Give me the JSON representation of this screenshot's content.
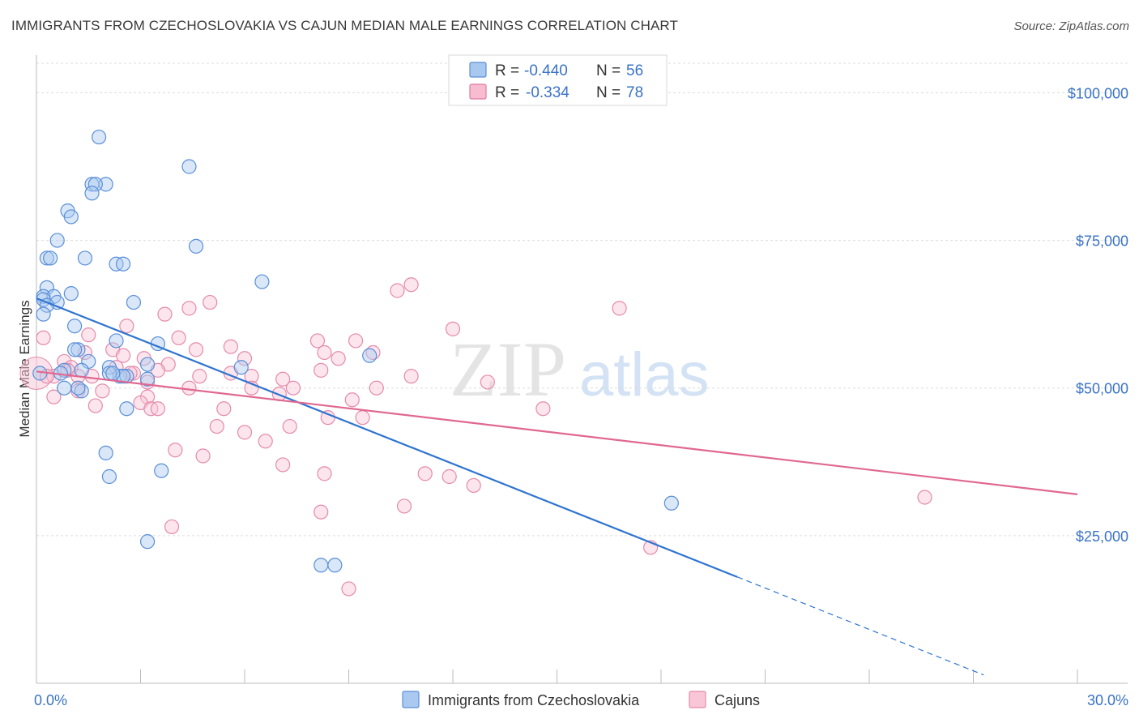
{
  "title": "IMMIGRANTS FROM CZECHOSLOVAKIA VS CAJUN MEDIAN MALE EARNINGS CORRELATION CHART",
  "source": "Source: ZipAtlas.com",
  "watermark": {
    "zip": "ZIP",
    "atlas": "atlas"
  },
  "legend": {
    "rows": [
      {
        "r_label": "R =",
        "r_value": "-0.440",
        "n_label": "N =",
        "n_value": "56",
        "color": "#a8c8f0",
        "stroke": "#5b8fd6"
      },
      {
        "r_label": "R =",
        "r_value": "-0.334",
        "n_label": "N =",
        "n_value": "78",
        "color": "#f7bcd0",
        "stroke": "#e07aa0"
      }
    ]
  },
  "colors": {
    "blue_fill": "#aac9f0",
    "blue_stroke": "#5a8fd8",
    "blue_line": "#2f74d0",
    "pink_fill": "#f8c6d6",
    "pink_stroke": "#e58aaa",
    "pink_line": "#e06890",
    "axis_text": "#3a73c8",
    "grid": "#dcdcdc"
  },
  "chart_data": {
    "type": "scatter",
    "title": "IMMIGRANTS FROM CZECHOSLOVAKIA VS CAJUN MEDIAN MALE EARNINGS CORRELATION CHART",
    "xlabel": "",
    "ylabel": "Median Male Earnings",
    "xlim": [
      0,
      30
    ],
    "ylim": [
      0,
      105000
    ],
    "x_tick_labels": [
      "0.0%",
      "30.0%"
    ],
    "y_ticks": [
      25000,
      50000,
      75000,
      100000
    ],
    "y_tick_labels": [
      "$25,000",
      "$50,000",
      "$75,000",
      "$100,000"
    ],
    "grid": true,
    "legend_position": "top-center",
    "series": [
      {
        "name": "Immigrants from Czechoslovakia",
        "trend": {
          "x0": 0,
          "y0": 65200,
          "x1": 20.2,
          "y1": 18000,
          "dash_to_x": 30
        },
        "points": [
          [
            1.8,
            92500
          ],
          [
            4.4,
            87500
          ],
          [
            2.0,
            84500
          ],
          [
            1.6,
            84500
          ],
          [
            1.7,
            84500
          ],
          [
            1.6,
            83000
          ],
          [
            0.9,
            80000
          ],
          [
            1.0,
            79000
          ],
          [
            0.6,
            75000
          ],
          [
            4.6,
            74000
          ],
          [
            0.3,
            72000
          ],
          [
            0.4,
            72000
          ],
          [
            1.4,
            72000
          ],
          [
            2.3,
            71000
          ],
          [
            2.5,
            71000
          ],
          [
            6.5,
            68000
          ],
          [
            0.3,
            67000
          ],
          [
            1.0,
            66000
          ],
          [
            0.2,
            65500
          ],
          [
            0.5,
            65500
          ],
          [
            0.2,
            65000
          ],
          [
            0.6,
            64500
          ],
          [
            0.3,
            64000
          ],
          [
            2.8,
            64500
          ],
          [
            0.2,
            62500
          ],
          [
            1.1,
            60500
          ],
          [
            2.3,
            58000
          ],
          [
            3.5,
            57500
          ],
          [
            1.2,
            56500
          ],
          [
            1.1,
            56500
          ],
          [
            9.6,
            55500
          ],
          [
            1.5,
            54500
          ],
          [
            3.2,
            54000
          ],
          [
            5.9,
            53500
          ],
          [
            2.1,
            53500
          ],
          [
            0.8,
            53000
          ],
          [
            1.3,
            53000
          ],
          [
            0.7,
            52500
          ],
          [
            2.4,
            52000
          ],
          [
            2.6,
            52000
          ],
          [
            2.1,
            52500
          ],
          [
            2.5,
            52000
          ],
          [
            3.2,
            51500
          ],
          [
            0.8,
            50000
          ],
          [
            1.3,
            49500
          ],
          [
            2.6,
            46500
          ],
          [
            2.0,
            39000
          ],
          [
            2.1,
            35000
          ],
          [
            3.6,
            36000
          ],
          [
            3.2,
            24000
          ],
          [
            8.2,
            20000
          ],
          [
            8.6,
            20000
          ],
          [
            18.3,
            30500
          ],
          [
            0.1,
            52500
          ],
          [
            1.2,
            50000
          ],
          [
            2.2,
            52500
          ]
        ]
      },
      {
        "name": "Cajuns",
        "trend": {
          "x0": 0,
          "y0": 52800,
          "x1": 30,
          "y1": 32000
        },
        "points": [
          [
            10.8,
            67500
          ],
          [
            10.4,
            66500
          ],
          [
            5.0,
            64500
          ],
          [
            16.8,
            63500
          ],
          [
            4.4,
            63500
          ],
          [
            3.7,
            62500
          ],
          [
            2.6,
            60500
          ],
          [
            12.0,
            60000
          ],
          [
            1.5,
            59000
          ],
          [
            0.2,
            58500
          ],
          [
            4.1,
            58500
          ],
          [
            8.1,
            58000
          ],
          [
            9.2,
            58000
          ],
          [
            5.6,
            57000
          ],
          [
            2.2,
            56500
          ],
          [
            4.6,
            56500
          ],
          [
            1.4,
            56000
          ],
          [
            8.3,
            56000
          ],
          [
            9.7,
            56000
          ],
          [
            2.5,
            55500
          ],
          [
            3.1,
            55000
          ],
          [
            6.0,
            55000
          ],
          [
            8.7,
            55000
          ],
          [
            0.8,
            54500
          ],
          [
            1.0,
            53500
          ],
          [
            3.8,
            54000
          ],
          [
            2.3,
            53500
          ],
          [
            3.5,
            53000
          ],
          [
            0.9,
            53000
          ],
          [
            5.6,
            52500
          ],
          [
            8.2,
            53000
          ],
          [
            2.8,
            52500
          ],
          [
            0.5,
            52000
          ],
          [
            1.2,
            52000
          ],
          [
            2.7,
            52500
          ],
          [
            4.7,
            52000
          ],
          [
            6.2,
            52000
          ],
          [
            7.1,
            51500
          ],
          [
            10.8,
            52000
          ],
          [
            13.0,
            51000
          ],
          [
            0.3,
            52000
          ],
          [
            1.6,
            52000
          ],
          [
            3.2,
            51000
          ],
          [
            6.2,
            50000
          ],
          [
            7.4,
            50000
          ],
          [
            9.8,
            50000
          ],
          [
            4.4,
            50000
          ],
          [
            1.2,
            49500
          ],
          [
            1.9,
            49500
          ],
          [
            3.2,
            48500
          ],
          [
            0.5,
            48500
          ],
          [
            7.0,
            49000
          ],
          [
            9.1,
            48000
          ],
          [
            3.0,
            47500
          ],
          [
            1.7,
            47000
          ],
          [
            3.3,
            46500
          ],
          [
            3.5,
            46500
          ],
          [
            5.4,
            46500
          ],
          [
            14.6,
            46500
          ],
          [
            8.4,
            45000
          ],
          [
            9.4,
            45000
          ],
          [
            7.3,
            43500
          ],
          [
            5.2,
            43500
          ],
          [
            6.0,
            42500
          ],
          [
            6.6,
            41000
          ],
          [
            4.0,
            39500
          ],
          [
            4.8,
            38500
          ],
          [
            7.1,
            37000
          ],
          [
            8.3,
            35500
          ],
          [
            11.2,
            35500
          ],
          [
            11.9,
            35000
          ],
          [
            12.6,
            33500
          ],
          [
            10.6,
            30000
          ],
          [
            8.2,
            29000
          ],
          [
            3.9,
            26500
          ],
          [
            17.7,
            23000
          ],
          [
            9.0,
            16000
          ],
          [
            25.6,
            31500
          ]
        ]
      }
    ]
  },
  "bottom_legend": [
    {
      "label": "Immigrants from Czechoslovakia"
    },
    {
      "label": "Cajuns"
    }
  ]
}
